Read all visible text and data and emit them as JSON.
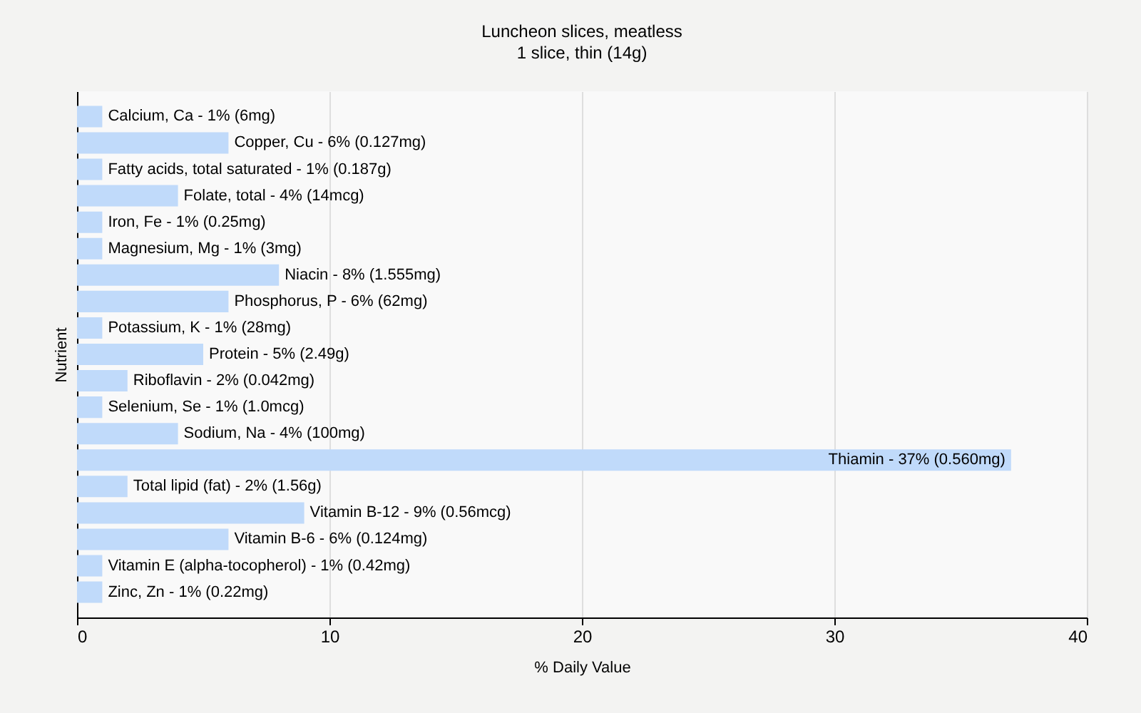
{
  "chart_data": {
    "type": "bar",
    "orientation": "horizontal",
    "title": "Luncheon slices, meatless",
    "subtitle": "1 slice, thin (14g)",
    "xlabel": "% Daily Value",
    "ylabel": "Nutrient",
    "categories": [
      "Calcium, Ca - 1% (6mg)",
      "Copper, Cu - 6% (0.127mg)",
      "Fatty acids, total saturated - 1% (0.187g)",
      "Folate, total - 4% (14mcg)",
      "Iron, Fe - 1% (0.25mg)",
      "Magnesium, Mg - 1% (3mg)",
      "Niacin - 8% (1.555mg)",
      "Phosphorus, P - 6% (62mg)",
      "Potassium, K - 1% (28mg)",
      "Protein - 5% (2.49g)",
      "Riboflavin - 2% (0.042mg)",
      "Selenium, Se - 1% (1.0mcg)",
      "Sodium, Na - 4% (100mg)",
      "Thiamin - 37% (0.560mg)",
      "Total lipid (fat) - 2% (1.56g)",
      "Vitamin B-12 - 9% (0.56mcg)",
      "Vitamin B-6 - 6% (0.124mg)",
      "Vitamin E (alpha-tocopherol) - 1% (0.42mg)",
      "Zinc, Zn - 1% (0.22mg)"
    ],
    "values": [
      1,
      6,
      1,
      4,
      1,
      1,
      8,
      6,
      1,
      5,
      2,
      1,
      4,
      37,
      2,
      9,
      6,
      1,
      1
    ],
    "color": "#c0dafa",
    "xlim": [
      0,
      40
    ],
    "xticks": [
      0,
      10,
      20,
      30,
      40
    ],
    "grid": "x",
    "tick_labels": "x"
  }
}
